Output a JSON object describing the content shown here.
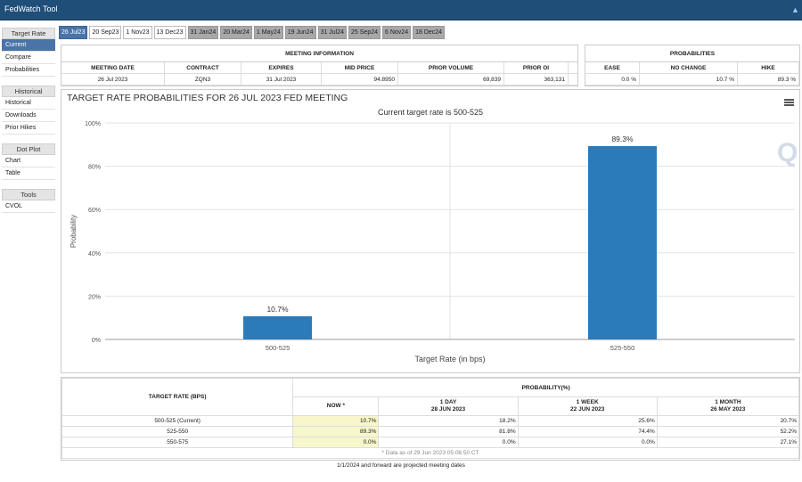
{
  "window": {
    "title": "FedWatch Tool"
  },
  "sidebar": {
    "groups": [
      {
        "title": "Target Rate",
        "items": [
          "Current",
          "Compare",
          "Probabilities"
        ]
      },
      {
        "title": "Historical",
        "items": [
          "Historical",
          "Downloads",
          "Prior Hikes"
        ]
      },
      {
        "title": "Dot Plot",
        "items": [
          "Chart",
          "Table"
        ]
      },
      {
        "title": "Tools",
        "items": [
          "CVOL"
        ]
      }
    ]
  },
  "tabs": [
    "26 Jul23",
    "20 Sep23",
    "1 Nov23",
    "13 Dec23",
    "31 Jan24",
    "20 Mar24",
    "1 May24",
    "19 Jun24",
    "31 Jul24",
    "25 Sep24",
    "6 Nov24",
    "18 Dec24"
  ],
  "meeting_info": {
    "title": "MEETING INFORMATION",
    "headers": [
      "MEETING DATE",
      "CONTRACT",
      "EXPIRES",
      "MID PRICE",
      "PRIOR VOLUME",
      "PRIOR OI"
    ],
    "values": [
      "26 Jul 2023",
      "ZQN3",
      "31 Jul 2023",
      "94.8950",
      "69,839",
      "363,131"
    ]
  },
  "probabilities": {
    "title": "PROBABILITIES",
    "headers": [
      "EASE",
      "NO CHANGE",
      "HIKE"
    ],
    "values": [
      "0.0 %",
      "10.7 %",
      "89.3 %"
    ]
  },
  "chart": {
    "title": "TARGET RATE PROBABILITIES FOR 26 JUL 2023 FED MEETING",
    "subtitle": "Current target rate is 500-525",
    "logo": "Q"
  },
  "chart_data": {
    "type": "bar",
    "categories": [
      "500-525",
      "525-550"
    ],
    "values": [
      10.7,
      89.3
    ],
    "data_labels": [
      "10.7%",
      "89.3%"
    ],
    "xlabel": "Target Rate (in bps)",
    "ylabel": "Probability",
    "ylim": [
      0,
      100
    ],
    "yticks": [
      "0%",
      "20%",
      "40%",
      "60%",
      "80%",
      "100%"
    ],
    "color": "#2b7bba",
    "grid": true
  },
  "bottom_table": {
    "col1_header": "TARGET RATE (BPS)",
    "prob_header": "PROBABILITY(%)",
    "cols": [
      {
        "l1": "NOW *",
        "l2": ""
      },
      {
        "l1": "1 DAY",
        "l2": "28 JUN 2023"
      },
      {
        "l1": "1 WEEK",
        "l2": "22 JUN 2023"
      },
      {
        "l1": "1 MONTH",
        "l2": "26 MAY 2023"
      }
    ],
    "rows": [
      {
        "rate": "500-525 (Current)",
        "vals": [
          "10.7%",
          "18.2%",
          "25.6%",
          "20.7%"
        ]
      },
      {
        "rate": "525-550",
        "vals": [
          "89.3%",
          "81.8%",
          "74.4%",
          "52.2%"
        ]
      },
      {
        "rate": "550-575",
        "vals": [
          "0.0%",
          "0.0%",
          "0.0%",
          "27.1%"
        ]
      }
    ],
    "note": "* Data as of 29 Jun 2023 05:08:50 CT"
  },
  "footnote": "1/1/2024 and forward are projected meeting dates",
  "colors": {
    "accent": "#4a74a8",
    "titlebar": "#1f4e79",
    "bar": "#2b7bba",
    "now_highlight": "#f8f7cc"
  }
}
